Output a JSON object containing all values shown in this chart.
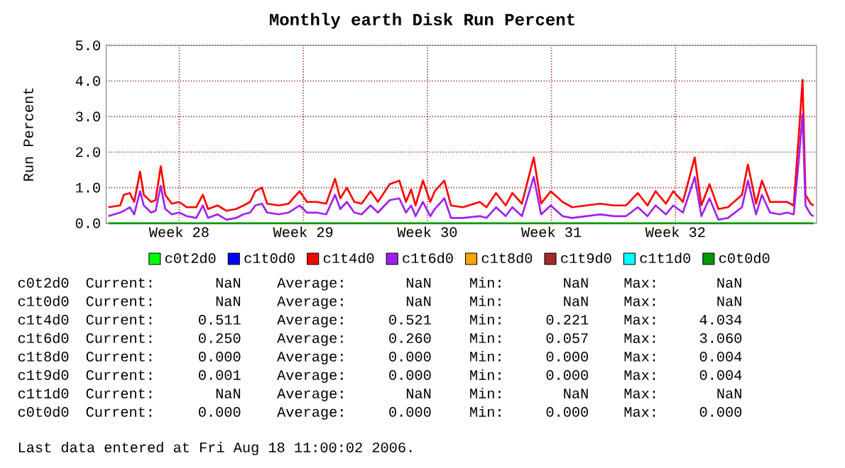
{
  "chart_data": {
    "type": "line",
    "title": "Monthly earth Disk Run Percent",
    "ylabel": "Run Percent",
    "xlim": [
      "2006-07-09T09:00",
      "2006-08-18T11:00"
    ],
    "ylim": [
      0,
      5
    ],
    "xticks": [
      {
        "value": "2006-07-13T12:00",
        "label": "Week 28"
      },
      {
        "value": "2006-07-20T12:00",
        "label": "Week 29"
      },
      {
        "value": "2006-07-27T12:00",
        "label": "Week 30"
      },
      {
        "value": "2006-08-03T12:00",
        "label": "Week 31"
      },
      {
        "value": "2006-08-10T12:00",
        "label": "Week 32"
      }
    ],
    "yticks": [
      {
        "value": 0,
        "label": "0.0"
      },
      {
        "value": 1,
        "label": "1.0"
      },
      {
        "value": 2,
        "label": "2.0"
      },
      {
        "value": 3,
        "label": "3.0"
      },
      {
        "value": 4,
        "label": "4.0"
      },
      {
        "value": 5,
        "label": "5.0"
      }
    ],
    "grid": true,
    "legend": "bottom",
    "marker": "none",
    "line_style": "solid",
    "series": [
      {
        "name": "c0t2d0",
        "color": "#00ff00"
      },
      {
        "name": "c1t0d0",
        "color": "#0000ff"
      },
      {
        "name": "c1t4d0",
        "color": "#ff0000",
        "x": [
          "2006-07-09T12:00",
          "2006-07-10T04:00",
          "2006-07-10T09:00",
          "2006-07-10T17:00",
          "2006-07-10T23:00",
          "2006-07-11T07:00",
          "2006-07-11T12:00",
          "2006-07-11T22:00",
          "2006-07-12T04:00",
          "2006-07-12T11:00",
          "2006-07-12T17:00",
          "2006-07-13T02:00",
          "2006-07-13T12:00",
          "2006-07-13T22:00",
          "2006-07-14T11:00",
          "2006-07-14T20:00",
          "2006-07-15T03:00",
          "2006-07-15T16:00",
          "2006-07-16T04:00",
          "2006-07-16T17:00",
          "2006-07-17T03:00",
          "2006-07-17T12:00",
          "2006-07-17T19:00",
          "2006-07-18T04:00",
          "2006-07-18T11:00",
          "2006-07-19T03:00",
          "2006-07-19T16:00",
          "2006-07-20T07:00",
          "2006-07-20T17:00",
          "2006-07-21T06:00",
          "2006-07-21T19:00",
          "2006-07-22T07:00",
          "2006-07-22T14:00",
          "2006-07-22T23:00",
          "2006-07-23T09:00",
          "2006-07-23T19:00",
          "2006-07-24T07:00",
          "2006-07-24T17:00",
          "2006-07-25T09:00",
          "2006-07-25T22:00",
          "2006-07-26T07:00",
          "2006-07-26T14:00",
          "2006-07-26T20:00",
          "2006-07-27T06:00",
          "2006-07-27T16:00",
          "2006-07-27T22:00",
          "2006-07-28T11:00",
          "2006-07-28T20:00",
          "2006-07-29T12:00",
          "2006-07-30T11:00",
          "2006-07-30T20:00",
          "2006-07-31T09:00",
          "2006-07-31T22:00",
          "2006-08-01T07:00",
          "2006-08-01T20:00",
          "2006-08-02T12:00",
          "2006-08-02T22:00",
          "2006-08-03T11:00",
          "2006-08-04T03:00",
          "2006-08-04T16:00",
          "2006-08-05T11:00",
          "2006-08-06T06:00",
          "2006-08-07T01:00",
          "2006-08-07T17:00",
          "2006-08-08T09:00",
          "2006-08-08T22:00",
          "2006-08-09T09:00",
          "2006-08-09T23:00",
          "2006-08-10T09:00",
          "2006-08-10T22:00",
          "2006-08-11T14:00",
          "2006-08-11T23:00",
          "2006-08-12T10:00",
          "2006-08-12T22:00",
          "2006-08-13T11:00",
          "2006-08-14T06:00",
          "2006-08-14T14:00",
          "2006-08-15T01:00",
          "2006-08-15T09:00",
          "2006-08-15T20:00",
          "2006-08-16T09:00",
          "2006-08-16T19:00",
          "2006-08-17T04:00",
          "2006-08-17T11:00",
          "2006-08-17T16:00",
          "2006-08-17T20:00",
          "2006-08-18T03:00",
          "2006-08-18T07:00"
        ],
        "values": [
          0.45,
          0.5,
          0.8,
          0.85,
          0.6,
          1.45,
          0.8,
          0.6,
          0.65,
          1.6,
          0.8,
          0.55,
          0.6,
          0.45,
          0.45,
          0.8,
          0.4,
          0.5,
          0.35,
          0.4,
          0.5,
          0.6,
          0.9,
          1.0,
          0.55,
          0.5,
          0.55,
          0.9,
          0.6,
          0.6,
          0.55,
          1.25,
          0.7,
          1.0,
          0.6,
          0.55,
          0.9,
          0.6,
          1.1,
          1.2,
          0.6,
          0.95,
          0.5,
          1.2,
          0.6,
          0.9,
          1.2,
          0.5,
          0.45,
          0.6,
          0.45,
          0.85,
          0.5,
          0.85,
          0.55,
          1.85,
          0.55,
          0.9,
          0.6,
          0.45,
          0.5,
          0.55,
          0.5,
          0.5,
          0.85,
          0.5,
          0.9,
          0.55,
          0.9,
          0.6,
          1.85,
          0.5,
          1.1,
          0.4,
          0.45,
          0.8,
          1.65,
          0.55,
          1.2,
          0.6,
          0.6,
          0.6,
          0.5,
          2.5,
          4.03,
          0.8,
          0.55,
          0.5
        ]
      },
      {
        "name": "c1t6d0",
        "color": "#a020f0",
        "x": [
          "2006-07-09T12:00",
          "2006-07-10T04:00",
          "2006-07-10T09:00",
          "2006-07-10T17:00",
          "2006-07-10T23:00",
          "2006-07-11T07:00",
          "2006-07-11T12:00",
          "2006-07-11T22:00",
          "2006-07-12T04:00",
          "2006-07-12T11:00",
          "2006-07-12T17:00",
          "2006-07-13T02:00",
          "2006-07-13T12:00",
          "2006-07-13T22:00",
          "2006-07-14T11:00",
          "2006-07-14T20:00",
          "2006-07-15T03:00",
          "2006-07-15T16:00",
          "2006-07-16T04:00",
          "2006-07-16T17:00",
          "2006-07-17T03:00",
          "2006-07-17T12:00",
          "2006-07-17T19:00",
          "2006-07-18T04:00",
          "2006-07-18T11:00",
          "2006-07-19T03:00",
          "2006-07-19T16:00",
          "2006-07-20T07:00",
          "2006-07-20T17:00",
          "2006-07-21T06:00",
          "2006-07-21T19:00",
          "2006-07-22T07:00",
          "2006-07-22T14:00",
          "2006-07-22T23:00",
          "2006-07-23T09:00",
          "2006-07-23T19:00",
          "2006-07-24T07:00",
          "2006-07-24T17:00",
          "2006-07-25T09:00",
          "2006-07-25T22:00",
          "2006-07-26T07:00",
          "2006-07-26T14:00",
          "2006-07-26T20:00",
          "2006-07-27T06:00",
          "2006-07-27T16:00",
          "2006-07-27T22:00",
          "2006-07-28T11:00",
          "2006-07-28T20:00",
          "2006-07-29T12:00",
          "2006-07-30T11:00",
          "2006-07-30T20:00",
          "2006-07-31T09:00",
          "2006-07-31T22:00",
          "2006-08-01T07:00",
          "2006-08-01T20:00",
          "2006-08-02T12:00",
          "2006-08-02T22:00",
          "2006-08-03T11:00",
          "2006-08-04T03:00",
          "2006-08-04T16:00",
          "2006-08-05T11:00",
          "2006-08-06T06:00",
          "2006-08-07T01:00",
          "2006-08-07T17:00",
          "2006-08-08T09:00",
          "2006-08-08T22:00",
          "2006-08-09T09:00",
          "2006-08-09T23:00",
          "2006-08-10T09:00",
          "2006-08-10T22:00",
          "2006-08-11T14:00",
          "2006-08-11T23:00",
          "2006-08-12T10:00",
          "2006-08-12T22:00",
          "2006-08-13T11:00",
          "2006-08-14T06:00",
          "2006-08-14T14:00",
          "2006-08-15T01:00",
          "2006-08-15T09:00",
          "2006-08-15T20:00",
          "2006-08-16T09:00",
          "2006-08-16T19:00",
          "2006-08-17T04:00",
          "2006-08-17T11:00",
          "2006-08-17T16:00",
          "2006-08-17T20:00",
          "2006-08-18T03:00",
          "2006-08-18T07:00"
        ],
        "values": [
          0.2,
          0.3,
          0.35,
          0.45,
          0.25,
          0.9,
          0.5,
          0.3,
          0.35,
          1.05,
          0.4,
          0.25,
          0.3,
          0.2,
          0.15,
          0.5,
          0.15,
          0.25,
          0.1,
          0.15,
          0.25,
          0.3,
          0.5,
          0.55,
          0.3,
          0.25,
          0.3,
          0.5,
          0.3,
          0.3,
          0.25,
          0.8,
          0.4,
          0.6,
          0.3,
          0.25,
          0.5,
          0.3,
          0.65,
          0.7,
          0.3,
          0.5,
          0.2,
          0.6,
          0.2,
          0.4,
          0.7,
          0.15,
          0.15,
          0.2,
          0.15,
          0.45,
          0.2,
          0.45,
          0.2,
          1.3,
          0.25,
          0.5,
          0.2,
          0.15,
          0.2,
          0.25,
          0.2,
          0.2,
          0.45,
          0.2,
          0.5,
          0.25,
          0.5,
          0.3,
          1.3,
          0.2,
          0.7,
          0.1,
          0.15,
          0.45,
          1.2,
          0.25,
          0.8,
          0.3,
          0.25,
          0.3,
          0.25,
          1.8,
          3.06,
          0.5,
          0.25,
          0.2
        ]
      },
      {
        "name": "c1t8d0",
        "color": "#ffa500"
      },
      {
        "name": "c1t9d0",
        "color": "#a52a2a"
      },
      {
        "name": "c1t1d0",
        "color": "#00ffff"
      },
      {
        "name": "c0t0d0",
        "color": "#009900",
        "x": [
          "2006-07-09T12:00",
          "2006-08-18T07:00"
        ],
        "values": [
          0,
          0
        ]
      }
    ],
    "annotations": [
      "c0t2d0",
      "Current:",
      "NaN",
      "Average:",
      "NaN",
      "Min:",
      "NaN",
      "Max:",
      "NaN",
      "c1t0d0",
      "Current:",
      "NaN",
      "Average:",
      "NaN",
      "Min:",
      "NaN",
      "Max:",
      "NaN",
      "c1t4d0",
      "Current:",
      "0.511",
      "Average:",
      "0.521",
      "Min:",
      "0.221",
      "Max:",
      "4.034",
      "c1t6d0",
      "Current:",
      "0.250",
      "Average:",
      "0.260",
      "Min:",
      "0.057",
      "Max:",
      "3.060",
      "c1t8d0",
      "Current:",
      "0.000",
      "Average:",
      "0.000",
      "Min:",
      "0.000",
      "Max:",
      "0.004",
      "c1t9d0",
      "Current:",
      "0.001",
      "Average:",
      "0.000",
      "Min:",
      "0.000",
      "Max:",
      "0.004",
      "c1t1d0",
      "Current:",
      "NaN",
      "Average:",
      "NaN",
      "Min:",
      "NaN",
      "Max:",
      "NaN",
      "c0t0d0",
      "Current:",
      "0.000",
      "Average:",
      "0.000",
      "Min:",
      "0.000",
      "Max:",
      "0.000",
      "Last data entered at Fri Aug 18 11:00:02 2006."
    ]
  }
}
